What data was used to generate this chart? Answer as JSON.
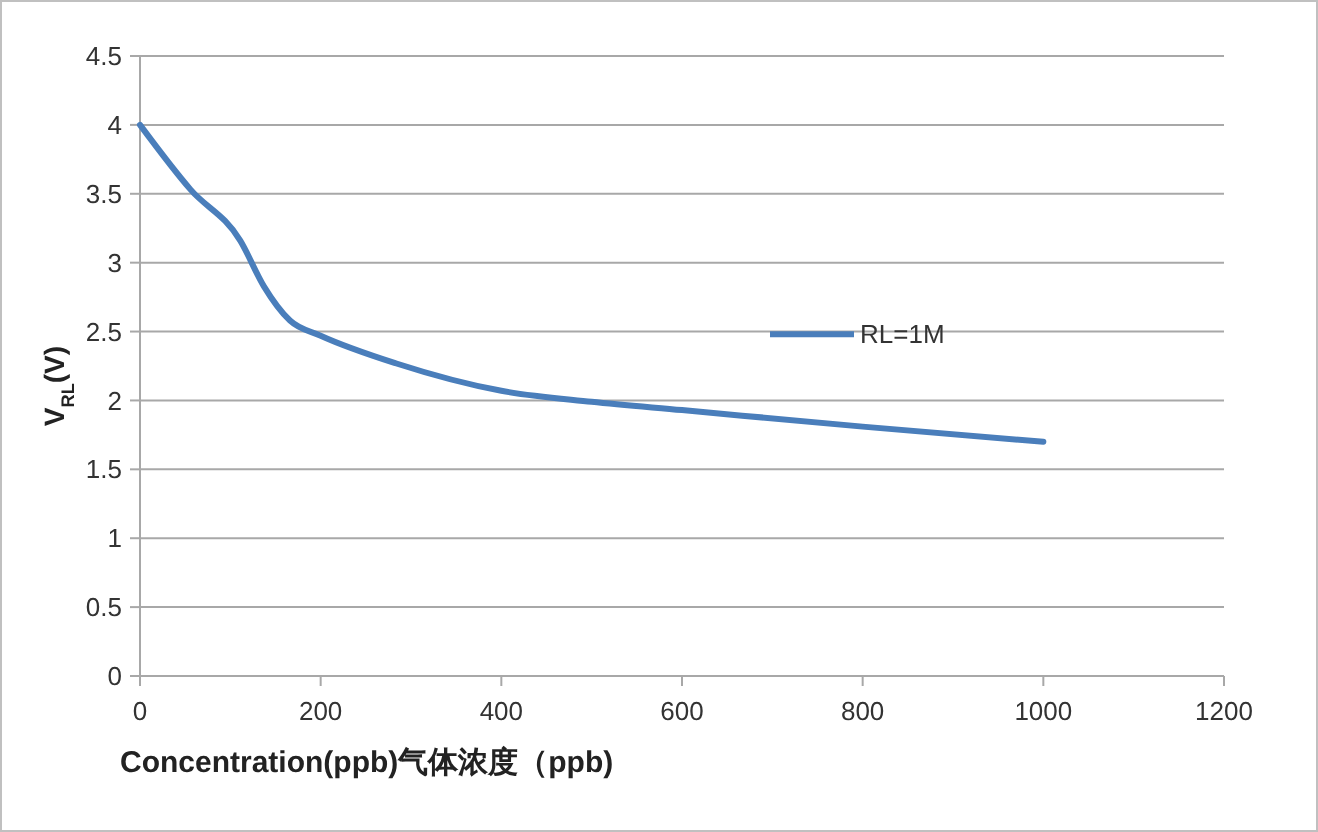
{
  "chart_data": {
    "type": "line",
    "xlabel": "Concentration(ppb)气体浓度（ppb)",
    "ylabel": "V$_{RL}$(V)",
    "x": [
      0,
      56,
      111,
      137,
      166,
      200,
      283,
      400,
      500,
      600,
      800,
      1000
    ],
    "series": [
      {
        "name": "RL=1M",
        "color": "#4a7ebb",
        "values": [
          4.0,
          3.53,
          3.16,
          2.83,
          2.58,
          2.47,
          2.27,
          2.07,
          1.99,
          1.93,
          1.81,
          1.7
        ]
      }
    ],
    "xlim": [
      0,
      1200
    ],
    "xticks": [
      0,
      200,
      400,
      600,
      800,
      1000,
      1200
    ],
    "ylim": [
      0,
      4.5
    ],
    "yticks": [
      0,
      0.5,
      1,
      1.5,
      2,
      2.5,
      3,
      3.5,
      4,
      4.5
    ],
    "grid": "y",
    "legend": "right",
    "marker": "none",
    "line_style": "solid"
  }
}
